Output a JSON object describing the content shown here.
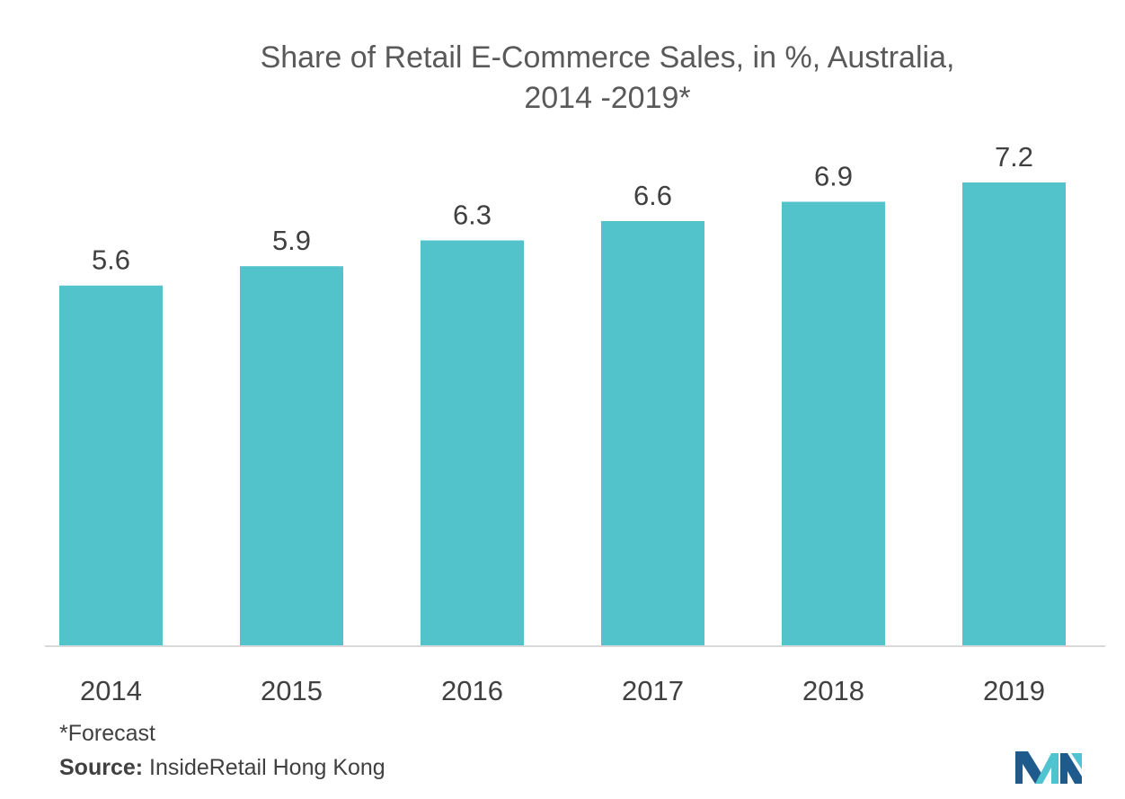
{
  "chart_data": {
    "type": "bar",
    "title_line1": "Share of Retail E-Commerce Sales, in %, Australia,",
    "title_line2": "2014 -2019*",
    "categories": [
      "2014",
      "2015",
      "2016",
      "2017",
      "2018",
      "2019"
    ],
    "values": [
      5.6,
      5.9,
      6.3,
      6.6,
      6.9,
      7.2
    ],
    "value_labels": [
      "5.6",
      "5.9",
      "6.3",
      "6.6",
      "6.9",
      "7.2"
    ],
    "xlabel": "",
    "ylabel": "",
    "ylim": [
      0,
      7.2
    ],
    "grid": false,
    "legend": "none",
    "bar_color": "#52c3cb"
  },
  "footnote": "*Forecast",
  "source": {
    "label": "Source:",
    "text": " InsideRetail Hong Kong"
  },
  "logo": {
    "icon": "mordor-intelligence-logo",
    "colors": [
      "#1e5a8c",
      "#4fc3cf"
    ]
  }
}
